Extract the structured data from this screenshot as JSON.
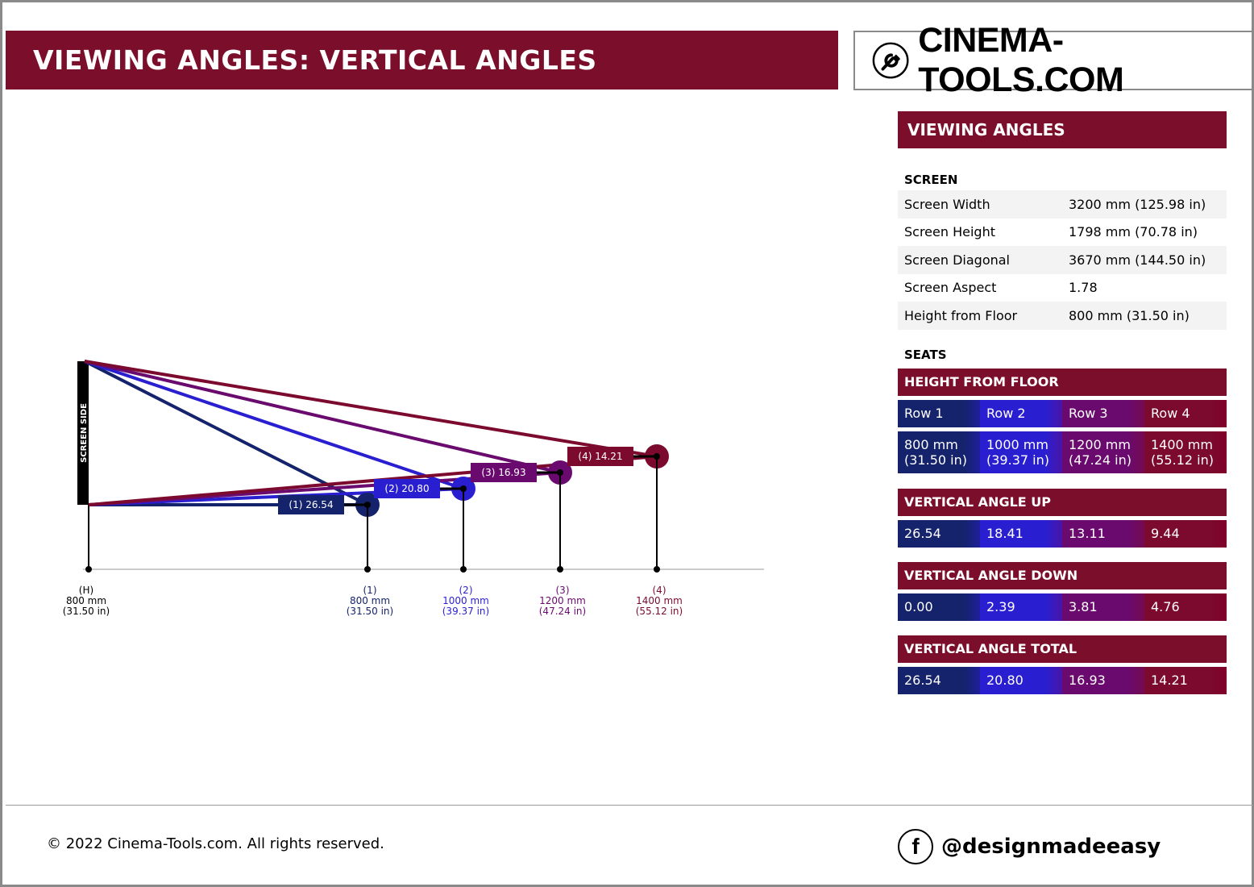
{
  "header": {
    "title": "VIEWING ANGLES: VERTICAL ANGLES"
  },
  "logo": {
    "text": "CINEMA-TOOLS.COM",
    "icon": "wrench-icon"
  },
  "colors": {
    "brand": "#7b0f2b",
    "rows": [
      "#14236b",
      "#2a1fd0",
      "#6a0a6e",
      "#7b0a2e"
    ]
  },
  "diagram": {
    "screen_label": "SCREEN SIDE",
    "screen": {
      "label": "(H)",
      "mm": "800 mm",
      "in": "(31.50 in)"
    },
    "seats": [
      {
        "label": "(1)",
        "mm": "800 mm",
        "in": "(31.50 in)",
        "angle_label": "(1) 26.54",
        "height_mm": 800
      },
      {
        "label": "(2)",
        "mm": "1000 mm",
        "in": "(39.37 in)",
        "angle_label": "(2) 20.80",
        "height_mm": 1000
      },
      {
        "label": "(3)",
        "mm": "1200 mm",
        "in": "(47.24 in)",
        "angle_label": "(3) 16.93",
        "height_mm": 1200
      },
      {
        "label": "(4)",
        "mm": "1400 mm",
        "in": "(55.12 in)",
        "angle_label": "(4) 14.21",
        "height_mm": 1400
      }
    ]
  },
  "panel": {
    "title": "VIEWING ANGLES",
    "screen_heading": "SCREEN",
    "screen_rows": [
      {
        "k": "Screen Width",
        "v": "3200 mm (125.98 in)"
      },
      {
        "k": "Screen Height",
        "v": "1798 mm (70.78 in)"
      },
      {
        "k": "Screen Diagonal",
        "v": "3670 mm (144.50 in)"
      },
      {
        "k": "Screen Aspect",
        "v": "1.78"
      },
      {
        "k": "Height from Floor",
        "v": "800 mm (31.50 in)"
      }
    ],
    "seats_heading": "SEATS",
    "height_heading": "HEIGHT FROM FLOOR",
    "row_labels": [
      "Row 1",
      "Row 2",
      "Row 3",
      "Row 4"
    ],
    "heights": [
      {
        "mm": "800 mm",
        "in": "(31.50 in)"
      },
      {
        "mm": "1000 mm",
        "in": "(39.37 in)"
      },
      {
        "mm": "1200 mm",
        "in": "(47.24 in)"
      },
      {
        "mm": "1400 mm",
        "in": "(55.12 in)"
      }
    ],
    "up_heading": "VERTICAL ANGLE UP",
    "up": [
      "26.54",
      "18.41",
      "13.11",
      "9.44"
    ],
    "down_heading": "VERTICAL ANGLE DOWN",
    "down": [
      "0.00",
      "2.39",
      "3.81",
      "4.76"
    ],
    "total_heading": "VERTICAL ANGLE TOTAL",
    "total": [
      "26.54",
      "20.80",
      "16.93",
      "14.21"
    ]
  },
  "footer": {
    "copyright": "© 2022 Cinema-Tools.com. All rights reserved.",
    "social_icon": "facebook-icon",
    "handle": "@designmadeeasy"
  }
}
